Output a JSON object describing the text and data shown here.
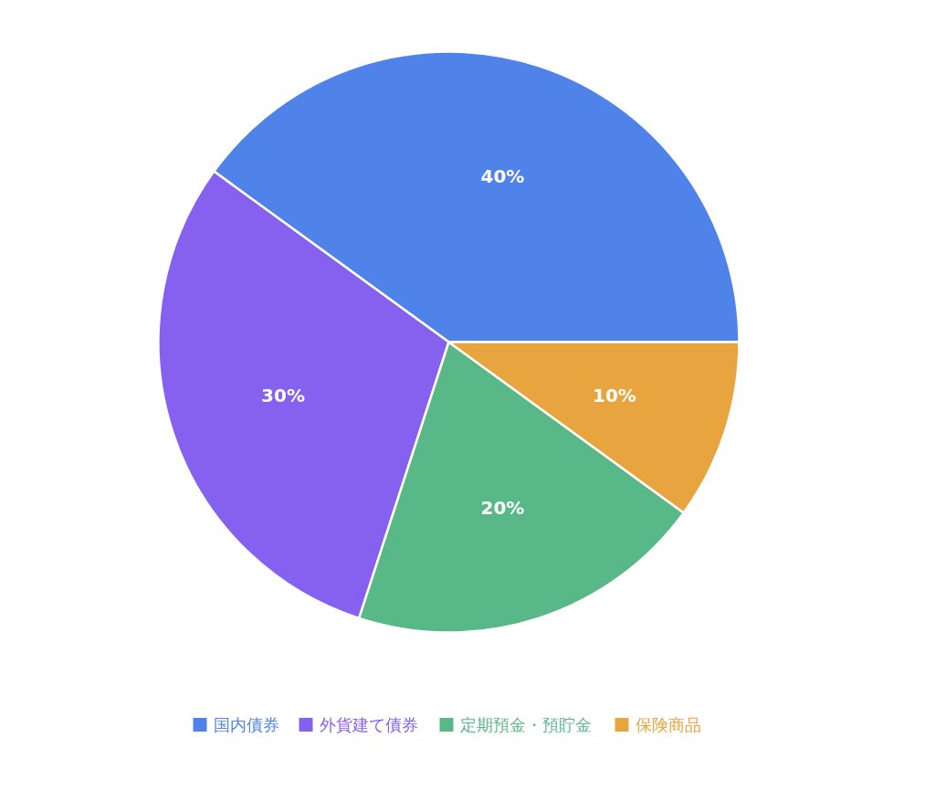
{
  "chart_data": {
    "type": "pie",
    "categories": [
      "国内債券",
      "外貨建て債券",
      "定期預金・預貯金",
      "保険商品"
    ],
    "values": [
      40,
      30,
      20,
      10
    ],
    "colors": [
      "#4f83ea",
      "#8660ee",
      "#58b887",
      "#e8a43e"
    ],
    "value_labels": [
      "40%",
      "30%",
      "20%",
      "10%"
    ],
    "legend": "bottom"
  }
}
